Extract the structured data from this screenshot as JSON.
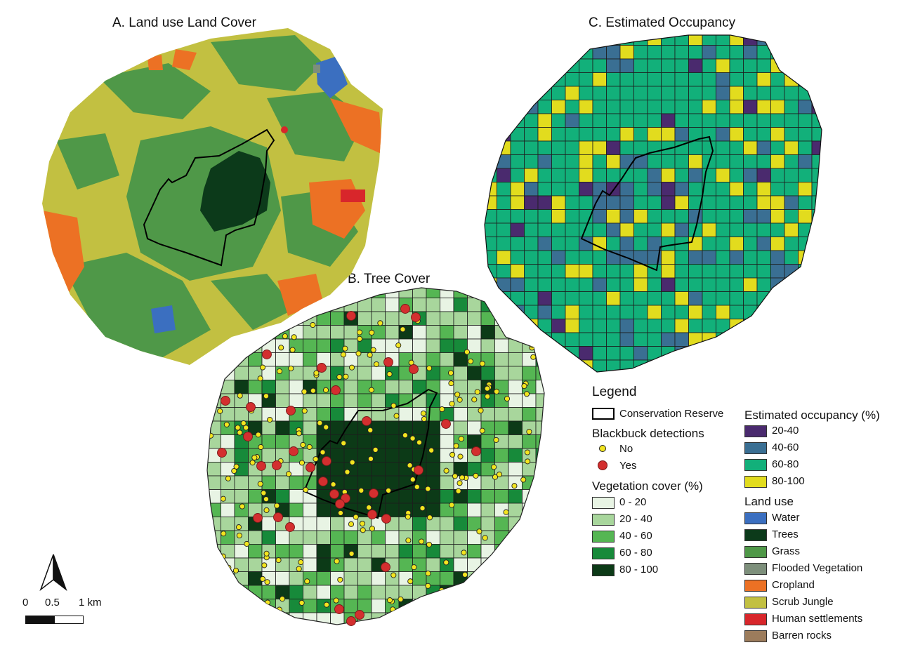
{
  "panels": {
    "a_title": "A. Land use Land Cover",
    "b_title": "B. Tree Cover",
    "c_title": "C. Estimated Occupancy"
  },
  "legend": {
    "title": "Legend",
    "reserve": "Conservation Reserve",
    "detections_title": "Blackbuck detections",
    "no": "No",
    "yes": "Yes",
    "veg_title": "Vegetation cover (%)",
    "veg": [
      {
        "label": "0 - 20",
        "color": "#e8f4e4"
      },
      {
        "label": "20 - 40",
        "color": "#a8d69c"
      },
      {
        "label": "40 - 60",
        "color": "#55b653"
      },
      {
        "label": "60 - 80",
        "color": "#178a3a"
      },
      {
        "label": "80 - 100",
        "color": "#0c3a17"
      }
    ],
    "occ_title": "Estimated occupancy (%)",
    "occ": [
      {
        "label": "20-40",
        "color": "#4a2a6e"
      },
      {
        "label": "40-60",
        "color": "#3a6f93"
      },
      {
        "label": "60-80",
        "color": "#12b07a"
      },
      {
        "label": "80-100",
        "color": "#e2dc1e"
      }
    ],
    "landuse_title": "Land use",
    "landuse": [
      {
        "label": "Water",
        "color": "#3b6fc0"
      },
      {
        "label": "Trees",
        "color": "#0c3a1a"
      },
      {
        "label": "Grass",
        "color": "#4f9848"
      },
      {
        "label": "Flooded Vegetation",
        "color": "#7d8f7b"
      },
      {
        "label": "Cropland",
        "color": "#ec7124"
      },
      {
        "label": "Scrub Jungle",
        "color": "#c2c041"
      },
      {
        "label": "Human settlements",
        "color": "#d8262b"
      },
      {
        "label": "Barren rocks",
        "color": "#9c7c5c"
      }
    ]
  },
  "scale": {
    "t0": "0",
    "t1": "0.5",
    "t2": "1 km"
  },
  "colors": {
    "yes": "#d32f2f",
    "no": "#f2e51f",
    "reserve": "#000000"
  }
}
